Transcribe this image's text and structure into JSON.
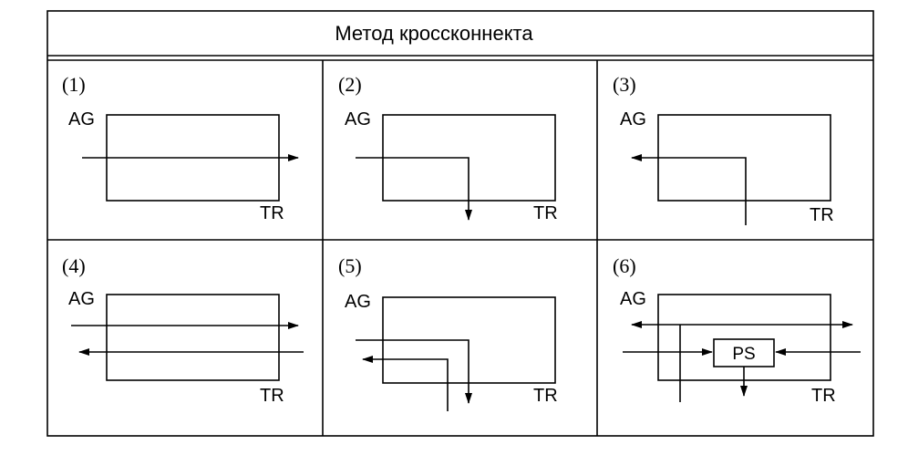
{
  "title": "Метод кроссконнекта",
  "panels": [
    {
      "number": "(1)",
      "ag": "AG",
      "tr": "TR"
    },
    {
      "number": "(2)",
      "ag": "AG",
      "tr": "TR"
    },
    {
      "number": "(3)",
      "ag": "AG",
      "tr": "TR"
    },
    {
      "number": "(4)",
      "ag": "AG",
      "tr": "TR"
    },
    {
      "number": "(5)",
      "ag": "AG",
      "tr": "TR"
    },
    {
      "number": "(6)",
      "ag": "AG",
      "tr": "TR",
      "ps": "PS"
    }
  ]
}
